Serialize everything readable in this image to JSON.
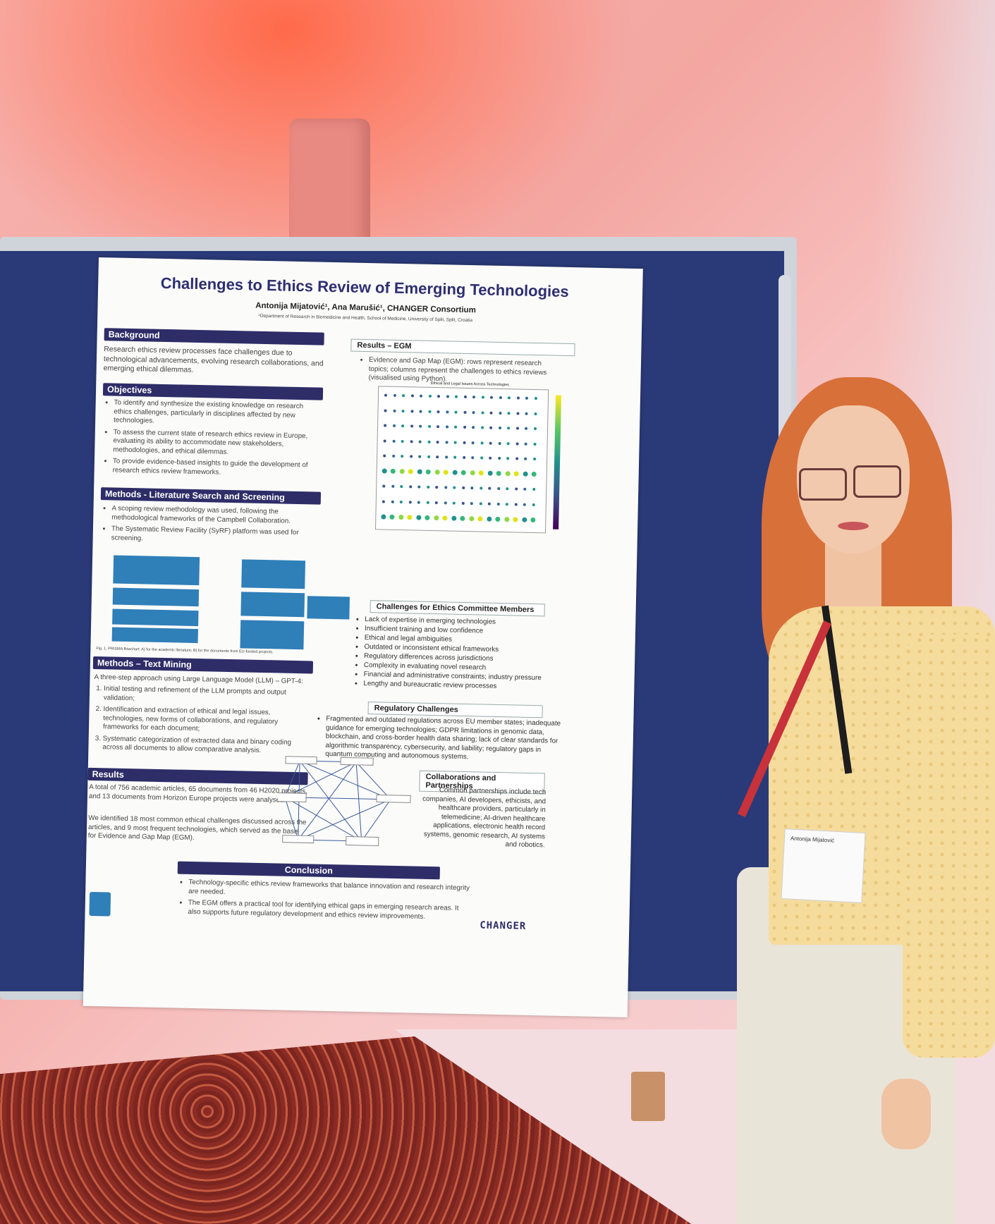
{
  "poster": {
    "title": "Challenges to Ethics Review of Emerging Technologies",
    "authors": "Antonija Mijatović¹, Ana Marušić¹, CHANGER Consortium",
    "affiliation": "¹Department of Research in Biomedicine and Health, School of Medicine, University of Split, Split, Croatia",
    "background": {
      "heading": "Background",
      "text": "Research ethics review processes face challenges due to technological advancements, evolving research collaborations, and emerging ethical dilemmas."
    },
    "objectives": {
      "heading": "Objectives",
      "items": [
        "To identify and synthesize the existing knowledge on research ethics challenges, particularly in disciplines affected by new technologies.",
        "To assess the current state of research ethics review in Europe, evaluating its ability to accommodate new stakeholders, methodologies, and ethical dilemmas.",
        "To provide evidence-based insights to guide the development of research ethics review frameworks."
      ]
    },
    "methods_lit": {
      "heading": "Methods - Literature Search and Screening",
      "items": [
        "A scoping review methodology was used, following the methodological frameworks of the Campbell Collaboration.",
        "The Systematic Review Facility (SyRF) platform was used for screening."
      ],
      "caption": "Fig. 1. PRISMA flowchart: A) for the academic literature; B) for the documents from EU-funded projects."
    },
    "methods_tm": {
      "heading": "Methods – Text Mining",
      "intro": "A three-step approach using Large Language Model (LLM) – GPT-4:",
      "items": [
        "Initial testing and refinement of the LLM prompts and output validation;",
        "Identification and extraction of ethical and legal issues, technologies, new forms of collaborations, and regulatory frameworks for each document;",
        "Systematic categorization of extracted data and binary coding across all documents to allow comparative analysis."
      ]
    },
    "results": {
      "heading": "Results",
      "p1": "A total of 756 academic articles, 65 documents from 46 H2020 projects, and 13 documents from Horizon Europe projects were analysed.",
      "p2": "We identified 18 most common ethical challenges discussed across the articles, and 9 most frequent technologies, which served as the basis for Evidence and Gap Map (EGM)."
    },
    "results_egm": {
      "heading": "Results – EGM",
      "text": "Evidence and Gap Map (EGM): rows represent research topics; columns represent the challenges to ethics reviews (visualised using Python).",
      "chart_title": "Ethical and Legal Issues Across Technologies"
    },
    "challenges": {
      "heading": "Challenges for Ethics Committee Members",
      "items": [
        "Lack of expertise in emerging technologies",
        "Insufficient training and low confidence",
        "Ethical and legal ambiguities",
        "Outdated or inconsistent ethical frameworks",
        "Regulatory differences across jurisdictions",
        "Complexity in evaluating novel research",
        "Financial and administrative constraints; industry pressure",
        "Lengthy and bureaucratic review processes"
      ]
    },
    "regulatory": {
      "heading": "Regulatory Challenges",
      "text": "Fragmented and outdated regulations across EU member states; inadequate guidance for emerging technologies; GDPR limitations in genomic data, blockchain, and cross-border health data sharing; lack of clear standards for algorithmic transparency, cybersecurity, and liability; regulatory gaps in quantum computing and autonomous systems."
    },
    "collab": {
      "heading": "Collaborations and Partnerships",
      "text": "Common partnerships include tech companies, AI developers, ethicists, and healthcare providers, particularly in telemedicine; AI-driven healthcare applications, electronic health record systems, genomic research, AI systems and robotics."
    },
    "conclusion": {
      "heading": "Conclusion",
      "items": [
        "Technology-specific ethics review frameworks that balance innovation and research integrity are needed.",
        "The EGM offers a practical tool for identifying ethical gaps in emerging research areas. It also supports future regulatory development and ethics review improvements."
      ]
    },
    "logo_right": "CHANGER"
  },
  "badge": {
    "name": "Antonija Mijatović"
  },
  "colors": {
    "section_bar": "#2e2d68",
    "board": "#2a3a78",
    "title": "#2e2e72"
  }
}
